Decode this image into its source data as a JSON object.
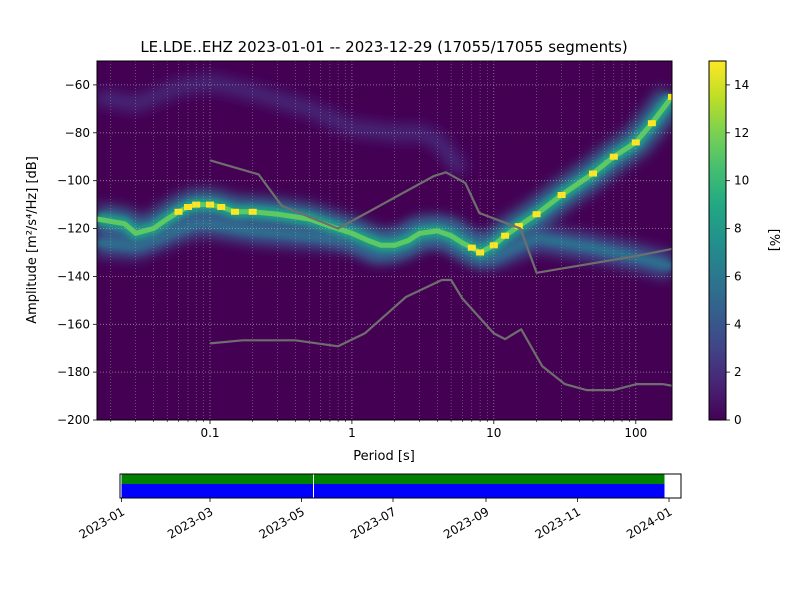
{
  "chart_data": [
    {
      "type": "heatmap",
      "title": "LE.LDE..EHZ   2023-01-01 -- 2023-12-29  (17055/17055 segments)",
      "xlabel": "Period [s]",
      "ylabel": "Amplitude [m²/s⁴/Hz] [dB]",
      "xscale": "log",
      "xlim": [
        0.016,
        180
      ],
      "ylim": [
        -200,
        -50
      ],
      "x_ticks": [
        {
          "value": 0.1,
          "label": "0.1"
        },
        {
          "value": 1,
          "label": "1"
        },
        {
          "value": 10,
          "label": "10"
        },
        {
          "value": 100,
          "label": "100"
        }
      ],
      "y_ticks": [
        {
          "value": -60,
          "label": "−60"
        },
        {
          "value": -80,
          "label": "−80"
        },
        {
          "value": -100,
          "label": "−100"
        },
        {
          "value": -120,
          "label": "−120"
        },
        {
          "value": -140,
          "label": "−140"
        },
        {
          "value": -160,
          "label": "−160"
        },
        {
          "value": -180,
          "label": "−180"
        },
        {
          "value": -200,
          "label": "−200"
        }
      ],
      "grid": true,
      "colorbar": {
        "label": "[%]",
        "range": [
          0,
          15
        ],
        "ticks": [
          {
            "value": 0,
            "label": "0"
          },
          {
            "value": 2,
            "label": "2"
          },
          {
            "value": 4,
            "label": "4"
          },
          {
            "value": 6,
            "label": "6"
          },
          {
            "value": 8,
            "label": "8"
          },
          {
            "value": 10,
            "label": "10"
          },
          {
            "value": 12,
            "label": "12"
          },
          {
            "value": 14,
            "label": "14"
          }
        ]
      },
      "modal_curve": {
        "x": [
          0.016,
          0.02,
          0.025,
          0.03,
          0.04,
          0.05,
          0.06,
          0.07,
          0.08,
          0.1,
          0.12,
          0.15,
          0.2,
          0.3,
          0.5,
          0.7,
          1,
          1.3,
          1.6,
          2,
          2.5,
          3,
          4,
          5,
          6,
          7,
          8,
          10,
          12,
          15,
          20,
          30,
          50,
          70,
          100,
          130,
          180
        ],
        "y": [
          -116,
          -117,
          -118,
          -122,
          -120,
          -116,
          -113,
          -111,
          -110,
          -110,
          -111,
          -113,
          -113,
          -114,
          -116,
          -119,
          -122,
          -125,
          -127,
          -127,
          -125,
          -122,
          -121,
          -123,
          -126,
          -128,
          -130,
          -127,
          -123,
          -119,
          -114,
          -106,
          -97,
          -90,
          -84,
          -76,
          -65
        ]
      },
      "secondary_ridge": {
        "x": [
          0.016,
          0.03,
          0.05,
          0.08,
          0.1,
          0.2,
          0.5,
          1,
          1.5,
          2,
          3,
          5,
          7,
          10,
          20,
          50,
          100,
          180
        ],
        "y": [
          -126,
          -127,
          -122,
          -118,
          -118,
          -121,
          -123,
          -124,
          -129,
          -127,
          -122,
          -122,
          -128,
          -131,
          -124,
          -128,
          -132,
          -136
        ]
      },
      "faint_band": {
        "x": [
          0.016,
          0.03,
          0.06,
          0.1,
          0.2,
          0.5,
          1,
          2,
          3,
          4,
          5,
          6
        ],
        "y": [
          -65,
          -68,
          -61,
          -59,
          -63,
          -70,
          -78,
          -80,
          -80,
          -83,
          -90,
          -96
        ]
      },
      "reference_curves": [
        {
          "x": [
            0.1,
            0.22,
            0.32,
            0.8,
            3.8,
            4.6,
            6.3,
            7.9,
            15.4,
            20,
            100,
            180
          ],
          "y": [
            -91.5,
            -97.4,
            -110.5,
            -120,
            -98,
            -96.5,
            -101,
            -113.5,
            -120,
            -138.5,
            -131.5,
            -128.5
          ]
        },
        {
          "x": [
            0.1,
            0.17,
            0.4,
            0.8,
            1.24,
            2.4,
            4.3,
            5,
            6,
            10,
            12,
            15.6,
            21.9,
            31.6,
            45,
            70,
            101,
            154,
            180
          ],
          "y": [
            -168,
            -166.7,
            -166.7,
            -169.2,
            -163.7,
            -148.6,
            -141.5,
            -141.5,
            -149.2,
            -163.8,
            -166.2,
            -162.1,
            -177.5,
            -185,
            -187.5,
            -187.5,
            -185,
            -185,
            -185.7
          ]
        }
      ]
    },
    {
      "type": "bar",
      "xlim": [
        "2022-12-31",
        "2024-01-09"
      ],
      "x_tick_labels": [
        "2023-01",
        "2023-03",
        "2023-05",
        "2023-07",
        "2023-09",
        "2023-11",
        "2024-01"
      ],
      "data_start": "2023-01-01",
      "data_end": "2023-12-29",
      "gaps": [
        "2023-05-09"
      ],
      "colors": {
        "green": "#008000",
        "blue": "#0000ff"
      }
    }
  ]
}
